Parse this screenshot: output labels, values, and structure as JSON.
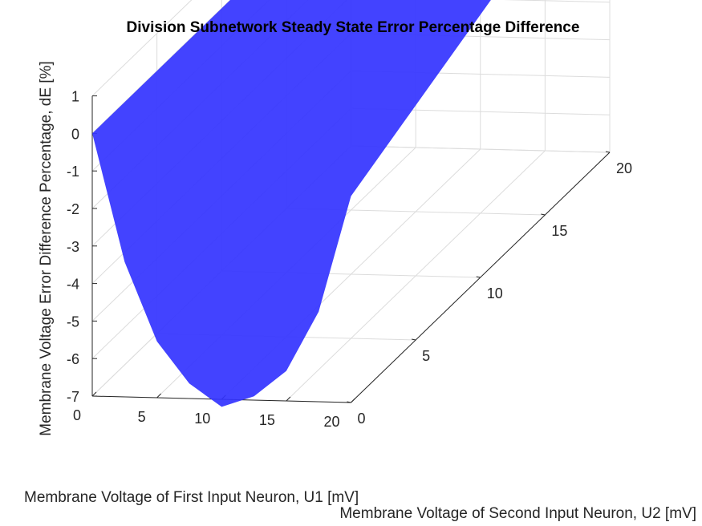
{
  "chart_data": {
    "type": "surface",
    "title": "Division Subnetwork Steady State Error Percentage Difference",
    "xlabel": "Membrane Voltage of First Input Neuron, U1 [mV]",
    "ylabel": "Membrane Voltage of Second Input Neuron, U2 [mV]",
    "zlabel": "Membrane Voltage Error Difference Percentage, dE [%]",
    "xlim": [
      0,
      20
    ],
    "ylim": [
      0,
      20
    ],
    "zlim": [
      -7,
      1
    ],
    "xticks": [
      "0",
      "5",
      "10",
      "15",
      "20"
    ],
    "yticks": [
      "0",
      "5",
      "10",
      "15",
      "20"
    ],
    "zticks": [
      "-7",
      "-6",
      "-5",
      "-4",
      "-3",
      "-2",
      "-1",
      "0",
      "1"
    ],
    "grid": true,
    "surface_color": "#3333ff",
    "profile_u2_0": {
      "u1": [
        0,
        2.5,
        5,
        7.5,
        10,
        12.5,
        15,
        17.5,
        20
      ],
      "dE": [
        0,
        -3.4,
        -5.5,
        -6.6,
        -7.2,
        -6.9,
        -6.2,
        -4.6,
        -1.5
      ]
    },
    "edge_u1_20": {
      "u2": [
        0,
        20
      ],
      "dE": [
        -1.5,
        1.5
      ]
    },
    "edge_u1_0": {
      "u2": [
        0,
        20
      ],
      "dE": [
        0,
        0
      ]
    },
    "far_corner": {
      "u1": 0,
      "u2": 20,
      "dE": 0
    }
  }
}
